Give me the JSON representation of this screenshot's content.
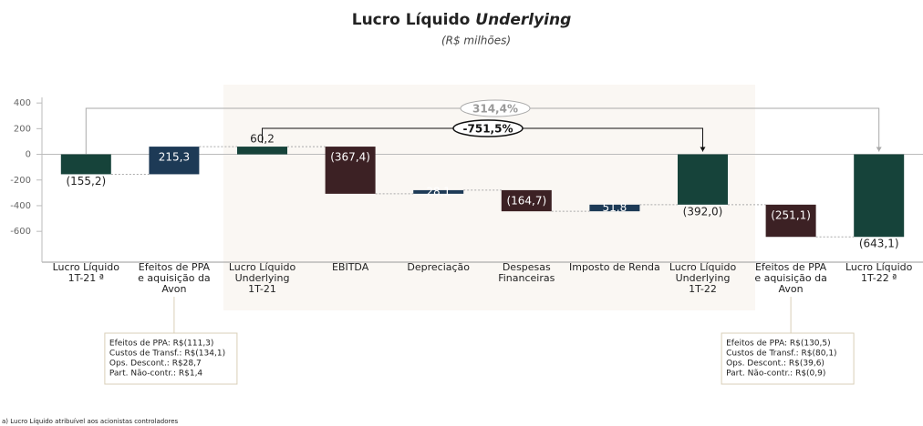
{
  "chart_data": {
    "type": "waterfall",
    "title": "Lucro Líquido",
    "title_italic": "Underlying",
    "subtitle": "(R$ milhões)",
    "categories": [
      [
        "Lucro Líquido",
        "1T-21 ª"
      ],
      [
        "Efeitos de PPA",
        "e aquisição da",
        "Avon"
      ],
      [
        "Lucro Líquido",
        "Underlying",
        "1T-21"
      ],
      [
        "EBITDA"
      ],
      [
        "Depreciação"
      ],
      [
        "Despesas",
        "Financeiras"
      ],
      [
        "Imposto de Renda"
      ],
      [
        "Lucro Líquido",
        "Underlying",
        "1T-22"
      ],
      [
        "Efeitos de PPA",
        "e aquisição da",
        "Avon"
      ],
      [
        "Lucro Líquido",
        "1T-22 ª"
      ]
    ],
    "values": [
      -155.2,
      215.3,
      60.2,
      -367.4,
      28.1,
      -164.7,
      51.8,
      -392.0,
      -251.1,
      -643.1
    ],
    "value_labels": [
      "(155,2)",
      "215,3",
      "60,2",
      "(367,4)",
      "28,1",
      "(164,7)",
      "51,8",
      "(392,0)",
      "(251,1)",
      "(643,1)"
    ],
    "totals": [
      true,
      false,
      true,
      false,
      false,
      false,
      false,
      true,
      false,
      true
    ],
    "colors": {
      "total": "#16433a",
      "increase": "#1d3a56",
      "decrease": "#3c2124"
    },
    "ylim": [
      -840,
      550
    ],
    "yticks": [
      400,
      200,
      0,
      -200,
      -400,
      -600
    ],
    "annotations": [
      {
        "text": "314,4%",
        "from": 0,
        "to": 9
      },
      {
        "text": "-751,5%",
        "from": 2,
        "to": 7
      }
    ],
    "notes": [
      {
        "at": 1,
        "lines": [
          "Efeitos de PPA: R$(111,3)",
          "Custos de Transf.: R$(134,1)",
          "Ops. Descont.: R$28,7",
          "Part. Não-contr.: R$1,4"
        ]
      },
      {
        "at": 8,
        "lines": [
          "Efeitos de PPA: R$(130,5)",
          "Custos de Transf.: R$(80,1)",
          "Ops. Descont.: R$(39,6)",
          "Part. Não-contr.: R$(0,9)"
        ]
      }
    ],
    "footnote": "a) Lucro Líquido atribuível aos acionistas controladores"
  }
}
